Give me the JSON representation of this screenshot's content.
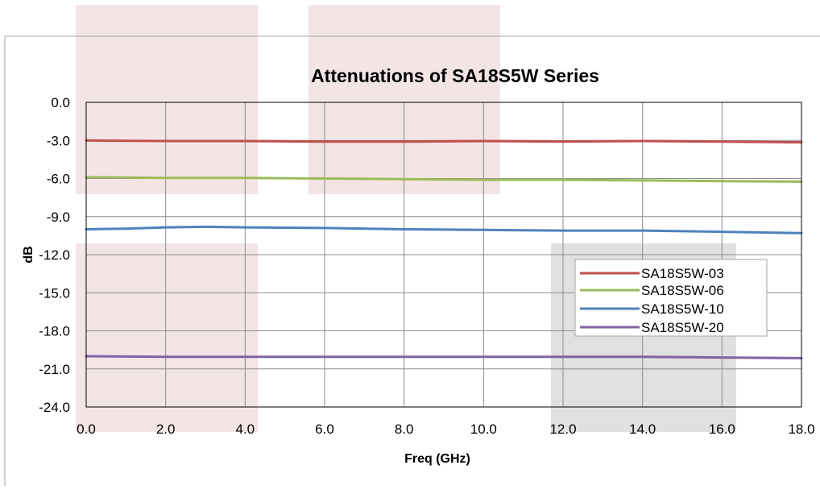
{
  "chart_data": {
    "type": "line",
    "title": "Attenuations of SA18S5W Series",
    "xlabel": "Freq (GHz)",
    "ylabel": "dB",
    "xlim": [
      0,
      18
    ],
    "ylim": [
      -24,
      0
    ],
    "xticks": [
      0,
      2,
      4,
      6,
      8,
      10,
      12,
      14,
      16,
      18
    ],
    "xtick_labels": [
      "0.0",
      "2.0",
      "4.0",
      "6.0",
      "8.0",
      "10.0",
      "12.0",
      "14.0",
      "16.0",
      "18.0"
    ],
    "yticks": [
      0,
      -3,
      -6,
      -9,
      -12,
      -15,
      -18,
      -21,
      -24
    ],
    "ytick_labels": [
      "0.0",
      "-3.0",
      "-6.0",
      "-9.0",
      "-12.0",
      "-15.0",
      "-18.0",
      "-21.0",
      "-24.0"
    ],
    "grid": true,
    "legend_position": "right",
    "series": [
      {
        "name": "SA18S5W-03",
        "color": "#c0504d",
        "x": [
          0,
          2,
          4,
          6,
          8,
          10,
          12,
          14,
          16,
          18
        ],
        "y": [
          -3.0,
          -3.05,
          -3.05,
          -3.1,
          -3.1,
          -3.05,
          -3.1,
          -3.05,
          -3.1,
          -3.15
        ]
      },
      {
        "name": "SA18S5W-06",
        "color": "#9bbb59",
        "x": [
          0,
          2,
          4,
          6,
          8,
          10,
          12,
          14,
          16,
          18
        ],
        "y": [
          -5.9,
          -5.95,
          -5.95,
          -6.0,
          -6.05,
          -6.1,
          -6.1,
          -6.15,
          -6.2,
          -6.25
        ]
      },
      {
        "name": "SA18S5W-10",
        "color": "#4f81bd",
        "x": [
          0,
          1,
          2,
          3,
          4,
          6,
          8,
          10,
          12,
          14,
          16,
          18
        ],
        "y": [
          -10.0,
          -9.95,
          -9.85,
          -9.8,
          -9.85,
          -9.9,
          -10.0,
          -10.05,
          -10.1,
          -10.1,
          -10.2,
          -10.3
        ]
      },
      {
        "name": "SA18S5W-20",
        "color": "#8064a2",
        "x": [
          0,
          2,
          4,
          6,
          8,
          10,
          12,
          14,
          16,
          18
        ],
        "y": [
          -20.0,
          -20.05,
          -20.05,
          -20.05,
          -20.05,
          -20.05,
          -20.05,
          -20.05,
          -20.1,
          -20.15
        ]
      }
    ]
  }
}
